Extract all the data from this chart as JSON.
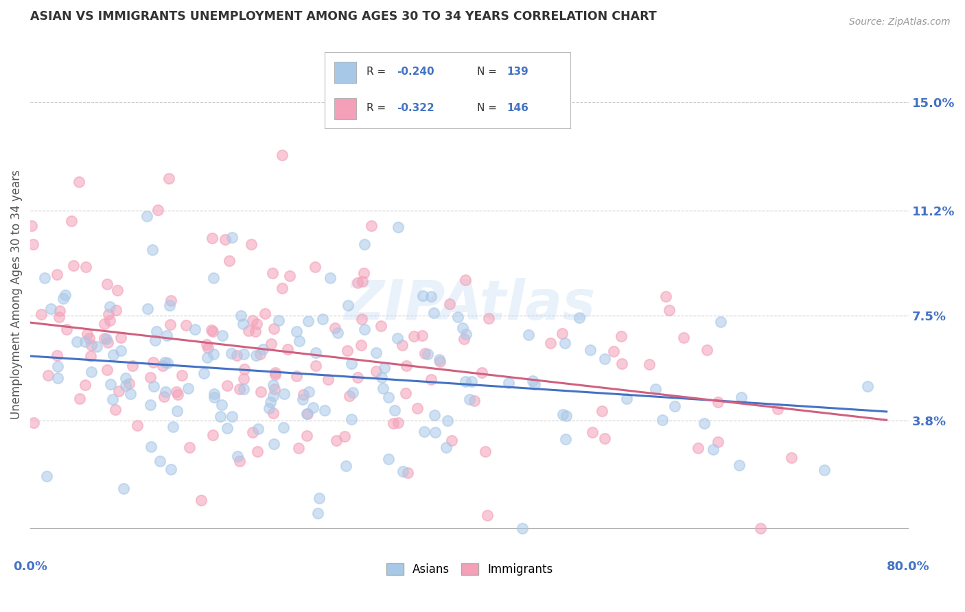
{
  "title": "ASIAN VS IMMIGRANTS UNEMPLOYMENT AMONG AGES 30 TO 34 YEARS CORRELATION CHART",
  "source": "Source: ZipAtlas.com",
  "ylabel": "Unemployment Among Ages 30 to 34 years",
  "xlim": [
    0.0,
    0.8
  ],
  "ylim": [
    -0.01,
    0.175
  ],
  "yticks": [
    0.0,
    0.038,
    0.075,
    0.112,
    0.15
  ],
  "ytick_labels": [
    "",
    "3.8%",
    "7.5%",
    "11.2%",
    "15.0%"
  ],
  "xtick_labels": [
    "0.0%",
    "80.0%"
  ],
  "background_color": "#ffffff",
  "grid_color": "#c8c8c8",
  "title_color": "#333333",
  "axis_label_color": "#4472c4",
  "legend_R_asian": "-0.240",
  "legend_N_asian": "139",
  "legend_R_immigrant": "-0.322",
  "legend_N_immigrant": "146",
  "asian_color": "#a8c8e8",
  "immigrant_color": "#f4a0b8",
  "asian_line_color": "#4472c4",
  "immigrant_line_color": "#d06080",
  "watermark": "ZIPAtlas",
  "dot_size": 120,
  "dot_alpha": 0.55,
  "asian_scatter_seed": 42,
  "immigrant_scatter_seed": 77
}
